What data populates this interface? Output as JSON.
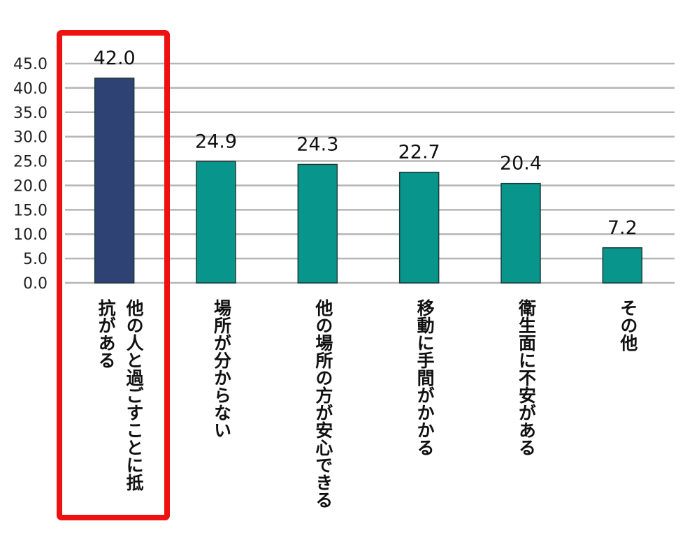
{
  "chart_data": {
    "type": "bar",
    "categories": [
      "他の人と過ごすことに抵抗がある",
      "場所が分からない",
      "他の場所の方が安心できる",
      "移動に手間がかかる",
      "衛生面に不安がある",
      "その他"
    ],
    "values": [
      42.0,
      24.9,
      24.3,
      22.7,
      20.4,
      7.2
    ],
    "value_labels": [
      "42.0",
      "24.9",
      "24.3",
      "22.7",
      "20.4",
      "7.2"
    ],
    "y_ticks": [
      "0.0",
      "5.0",
      "10.0",
      "15.0",
      "20.0",
      "25.0",
      "30.0",
      "35.0",
      "40.0",
      "45.0"
    ],
    "ylim": [
      0,
      45
    ],
    "grid": true,
    "legend": "none",
    "title": "",
    "xlabel": "",
    "ylabel": "",
    "colors": {
      "highlight_bar": "#2e4374",
      "bar": "#07958c",
      "bar_edge": "#1c3b3a",
      "highlight_box": "#ee1111",
      "grid": "#b5b5b5"
    },
    "highlight_index": 0
  }
}
